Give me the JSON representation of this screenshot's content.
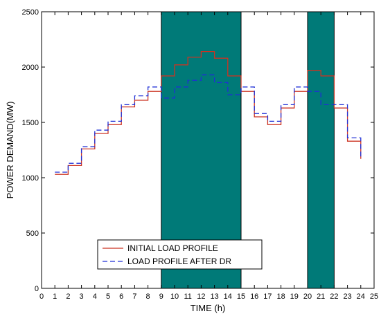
{
  "chart_data": {
    "type": "line",
    "xlabel": "TIME (h)",
    "ylabel": "POWER DEMAND(MW)",
    "xlim": [
      0,
      25
    ],
    "ylim": [
      0,
      2500
    ],
    "xticks": [
      0,
      1,
      2,
      3,
      4,
      5,
      6,
      7,
      8,
      9,
      10,
      11,
      12,
      13,
      14,
      15,
      16,
      17,
      18,
      19,
      20,
      21,
      22,
      23,
      24,
      25
    ],
    "yticks": [
      0,
      500,
      1000,
      1500,
      2000,
      2500
    ],
    "grid": false,
    "legend_position": "bottom-center",
    "step": "hourly",
    "hours": [
      1,
      2,
      3,
      4,
      5,
      6,
      7,
      8,
      9,
      10,
      11,
      12,
      13,
      14,
      15,
      16,
      17,
      18,
      19,
      20,
      21,
      22,
      23,
      24
    ],
    "highlight_bands": [
      {
        "from": 9,
        "to": 15,
        "color": "#007a78"
      },
      {
        "from": 20,
        "to": 22,
        "color": "#007a78"
      }
    ],
    "series": [
      {
        "name": "INITIAL LOAD PROFILE",
        "color": "#cc3322",
        "dash": "solid",
        "values": [
          1030,
          1110,
          1260,
          1400,
          1480,
          1640,
          1700,
          1780,
          1920,
          2020,
          2090,
          2140,
          2080,
          1920,
          1780,
          1550,
          1480,
          1630,
          1780,
          1970,
          1920,
          1630,
          1330,
          1200
        ]
      },
      {
        "name": "LOAD PROFILE AFTER DR",
        "color": "#1f2fd6",
        "dash": "dashed",
        "values": [
          1050,
          1130,
          1280,
          1430,
          1510,
          1660,
          1740,
          1820,
          1720,
          1820,
          1880,
          1930,
          1860,
          1750,
          1820,
          1580,
          1510,
          1660,
          1820,
          1780,
          1660,
          1660,
          1360,
          1200
        ]
      }
    ]
  }
}
